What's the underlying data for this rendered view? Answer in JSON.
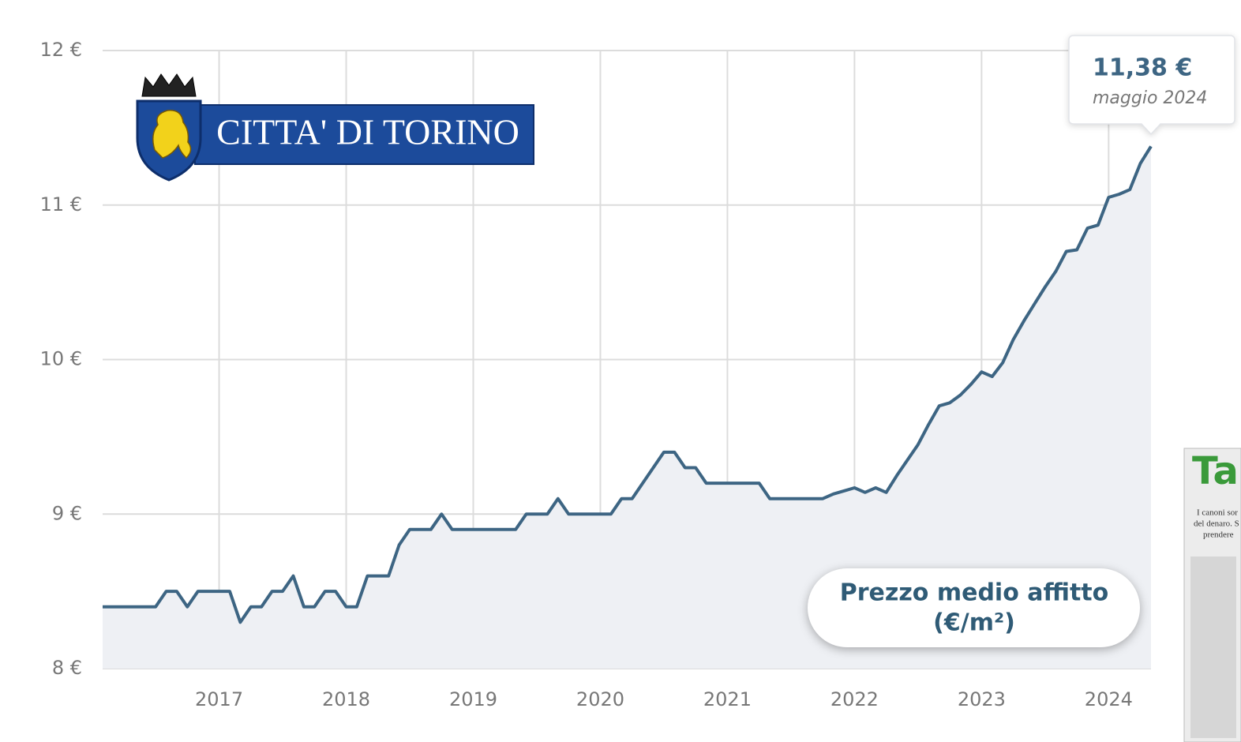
{
  "chart_data": {
    "type": "line",
    "color": "#3d6583",
    "area_color": "#eef0f4",
    "grid": true,
    "x": [
      "2016-02",
      "2016-03",
      "2016-04",
      "2016-05",
      "2016-06",
      "2016-07",
      "2016-08",
      "2016-09",
      "2016-10",
      "2016-11",
      "2016-12",
      "2017-01",
      "2017-02",
      "2017-03",
      "2017-04",
      "2017-05",
      "2017-06",
      "2017-07",
      "2017-08",
      "2017-09",
      "2017-10",
      "2017-11",
      "2017-12",
      "2018-01",
      "2018-02",
      "2018-03",
      "2018-04",
      "2018-05",
      "2018-06",
      "2018-07",
      "2018-08",
      "2018-09",
      "2018-10",
      "2018-11",
      "2018-12",
      "2019-01",
      "2019-02",
      "2019-03",
      "2019-04",
      "2019-05",
      "2019-06",
      "2019-07",
      "2019-08",
      "2019-09",
      "2019-10",
      "2019-11",
      "2019-12",
      "2020-01",
      "2020-02",
      "2020-03",
      "2020-04",
      "2020-05",
      "2020-06",
      "2020-07",
      "2020-08",
      "2020-09",
      "2020-10",
      "2020-11",
      "2020-12",
      "2021-01",
      "2021-02",
      "2021-03",
      "2021-04",
      "2021-05",
      "2021-06",
      "2021-07",
      "2021-08",
      "2021-09",
      "2021-10",
      "2021-11",
      "2021-12",
      "2022-01",
      "2022-02",
      "2022-03",
      "2022-04",
      "2022-05",
      "2022-06",
      "2022-07",
      "2022-08",
      "2022-09",
      "2022-10",
      "2022-11",
      "2022-12",
      "2023-01",
      "2023-02",
      "2023-03",
      "2023-04",
      "2023-05",
      "2023-06",
      "2023-07",
      "2023-08",
      "2023-09",
      "2023-10",
      "2023-11",
      "2023-12",
      "2024-01",
      "2024-02",
      "2024-03",
      "2024-04",
      "2024-05"
    ],
    "values": [
      8.4,
      8.4,
      8.4,
      8.4,
      8.4,
      8.4,
      8.5,
      8.5,
      8.4,
      8.5,
      8.5,
      8.5,
      8.5,
      8.3,
      8.4,
      8.4,
      8.5,
      8.5,
      8.6,
      8.4,
      8.4,
      8.5,
      8.5,
      8.4,
      8.4,
      8.6,
      8.6,
      8.6,
      8.8,
      8.9,
      8.9,
      8.9,
      9.0,
      8.9,
      8.9,
      8.9,
      8.9,
      8.9,
      8.9,
      8.9,
      9.0,
      9.0,
      9.0,
      9.1,
      9.0,
      9.0,
      9.0,
      9.0,
      9.0,
      9.1,
      9.1,
      9.2,
      9.3,
      9.4,
      9.4,
      9.3,
      9.3,
      9.2,
      9.2,
      9.2,
      9.2,
      9.2,
      9.2,
      9.1,
      9.1,
      9.1,
      9.1,
      9.1,
      9.1,
      9.13,
      9.15,
      9.17,
      9.14,
      9.17,
      9.14,
      9.25,
      9.35,
      9.45,
      9.58,
      9.7,
      9.72,
      9.77,
      9.84,
      9.92,
      9.89,
      9.98,
      10.13,
      10.25,
      10.36,
      10.47,
      10.57,
      10.7,
      10.71,
      10.85,
      10.87,
      11.05,
      11.07,
      11.1,
      11.27,
      11.38
    ],
    "xlim": [
      "2016-02",
      "2024-05"
    ],
    "xticks": [
      "2017",
      "2018",
      "2019",
      "2020",
      "2021",
      "2022",
      "2023",
      "2024"
    ],
    "ylim": [
      8,
      12
    ],
    "yticks": [
      {
        "value": 8,
        "label": "8 €"
      },
      {
        "value": 9,
        "label": "9 €"
      },
      {
        "value": 10,
        "label": "10 €"
      },
      {
        "value": 11,
        "label": "11 €"
      },
      {
        "value": 12,
        "label": "12 €"
      }
    ],
    "tooltip": {
      "value": "11,38 €",
      "label": "maggio 2024"
    },
    "annotation": [
      "Prezzo medio affitto",
      "(€/m²)"
    ],
    "logo_text": "CITTA' DI TORINO",
    "clipping": {
      "title": "Ta",
      "lines": [
        "I canoni sor",
        "del denaro. S",
        "prendere"
      ]
    }
  }
}
